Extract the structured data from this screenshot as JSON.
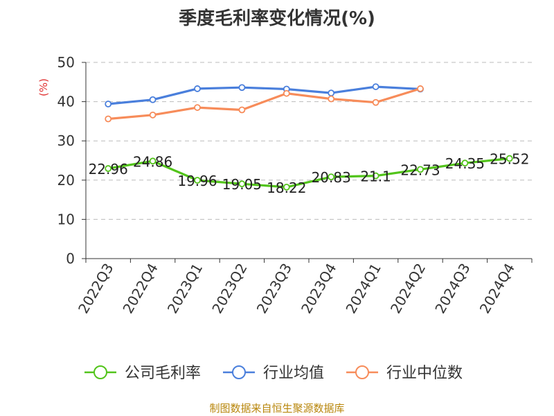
{
  "title": "季度毛利率变化情况(%)",
  "source": "制图数据来自恒生聚源数据库",
  "chart_data": {
    "type": "line",
    "unit_label": "(%)",
    "categories": [
      "2022Q3",
      "2022Q4",
      "2023Q1",
      "2023Q2",
      "2023Q3",
      "2023Q4",
      "2024Q1",
      "2024Q2",
      "2024Q3",
      "2024Q4"
    ],
    "ylim": [
      0,
      50
    ],
    "yticks": [
      0,
      10,
      20,
      30,
      40,
      50
    ],
    "grid": true,
    "legend_position": "bottom",
    "series": [
      {
        "name": "公司毛利率",
        "color": "#52c41a",
        "labels": [
          "22.96",
          "24.86",
          "19.96",
          "19.05",
          "18.22",
          "20.83",
          "21.1",
          "22.73",
          "24.35",
          "25.52"
        ],
        "values": [
          22.96,
          24.86,
          19.96,
          19.05,
          18.22,
          20.83,
          21.1,
          22.73,
          24.35,
          25.52
        ]
      },
      {
        "name": "行业均值",
        "color": "#4a7fdc",
        "values": [
          39.4,
          40.5,
          43.3,
          43.6,
          43.2,
          42.2,
          43.8,
          43.2,
          null,
          null
        ]
      },
      {
        "name": "行业中位数",
        "color": "#f78c5a",
        "values": [
          35.6,
          36.6,
          38.5,
          37.9,
          42.1,
          40.7,
          39.8,
          43.3,
          null,
          null
        ]
      }
    ]
  }
}
